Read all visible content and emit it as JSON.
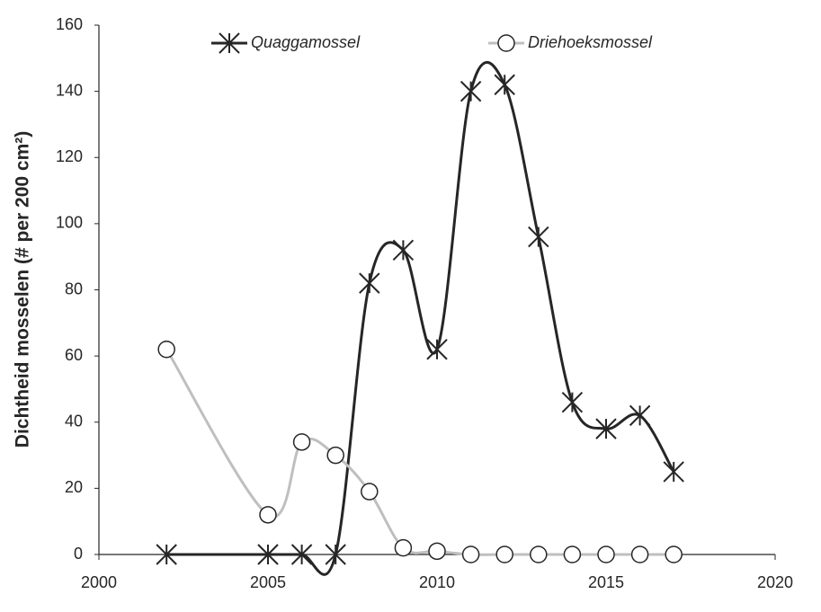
{
  "chart_data": {
    "type": "line",
    "y_label": "Dichtheid mosselen (# per 200 cm²)",
    "x": [
      2002,
      2005,
      2006,
      2007,
      2008,
      2009,
      2010,
      2011,
      2012,
      2013,
      2014,
      2015,
      2016,
      2017
    ],
    "series": [
      {
        "name": "Quaggamossel",
        "color": "#262626",
        "marker": "asterisk",
        "values": [
          0,
          0,
          0,
          0,
          82,
          92,
          62,
          140,
          142,
          96,
          46,
          38,
          42,
          25
        ]
      },
      {
        "name": "Driehoeksmossel",
        "color": "#bfbfbf",
        "marker": "circle",
        "values": [
          62,
          12,
          34,
          30,
          19,
          2,
          1,
          0,
          0,
          0,
          0,
          0,
          0,
          0
        ]
      }
    ],
    "xlim": [
      2000,
      2020
    ],
    "xticks": [
      2000,
      2005,
      2010,
      2015,
      2020
    ],
    "ylim": [
      0,
      160
    ],
    "yticks": [
      0,
      20,
      40,
      60,
      80,
      100,
      120,
      140,
      160
    ],
    "smooth": true,
    "grid": false,
    "legend": "top"
  }
}
